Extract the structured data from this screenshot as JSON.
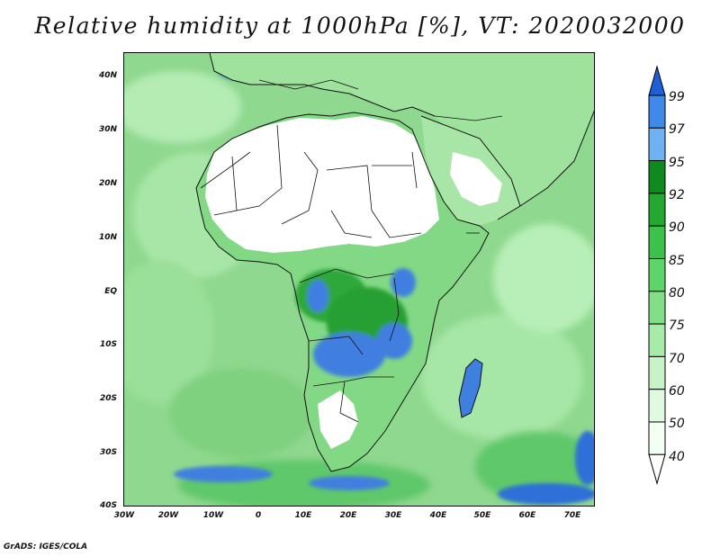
{
  "title": "Relative humidity at 1000hPa [%], VT: 2020032000",
  "credit": "GrADS: IGES/COLA",
  "lat_labels": [
    "40N",
    "30N",
    "20N",
    "10N",
    "EQ",
    "10S",
    "20S",
    "30S",
    "40S"
  ],
  "lon_labels": [
    "30W",
    "20W",
    "10W",
    "0",
    "10E",
    "20E",
    "30E",
    "40E",
    "50E",
    "60E",
    "70E"
  ],
  "colorbar": {
    "levels": [
      "99",
      "97",
      "95",
      "92",
      "90",
      "85",
      "80",
      "75",
      "70",
      "60",
      "50",
      "40"
    ],
    "colors": [
      "#1f5fd6",
      "#3f8ae8",
      "#6fb2f2",
      "#0f8a1e",
      "#24a830",
      "#3cc14a",
      "#5fd46a",
      "#82df88",
      "#a6eba8",
      "#c7f3c7",
      "#e0fae0",
      "#f2fff2",
      "#ffffff"
    ]
  },
  "map": {
    "ocean_color": "#8fd88f",
    "land_color": "#7fd07f",
    "dry_color": "#ffffff",
    "wet_color": "#3f7fe0"
  }
}
